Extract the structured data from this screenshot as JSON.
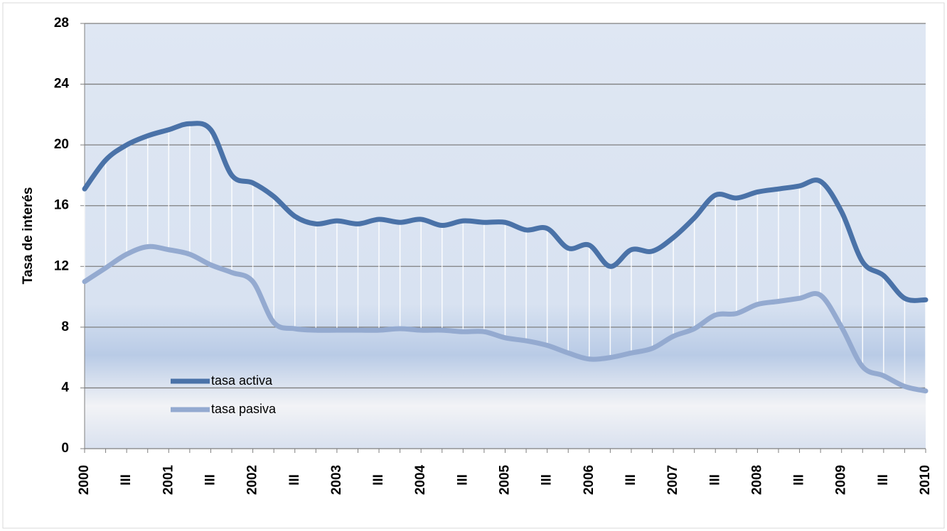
{
  "chart_data": {
    "type": "line",
    "y_label": "Tasa de interés",
    "categories": [
      "2000",
      null,
      "III",
      null,
      "2001",
      null,
      "III",
      null,
      "2002",
      null,
      "III",
      null,
      "2003",
      null,
      "III",
      null,
      "2004",
      null,
      "III",
      null,
      "2005",
      null,
      "III",
      null,
      "2006",
      null,
      "III",
      null,
      "2007",
      null,
      "III",
      null,
      "2008",
      null,
      "III",
      null,
      "2009",
      null,
      "III",
      null,
      "2010"
    ],
    "series": [
      {
        "name": "tasa activa",
        "color": "#4a72a8",
        "values": [
          17.1,
          19.0,
          20.0,
          20.6,
          21.0,
          21.4,
          21.0,
          18.0,
          17.5,
          16.6,
          15.3,
          14.8,
          15.0,
          14.8,
          15.1,
          14.9,
          15.1,
          14.7,
          15.0,
          14.9,
          14.9,
          14.4,
          14.5,
          13.2,
          13.4,
          12.0,
          13.1,
          13.0,
          13.9,
          15.2,
          16.7,
          16.5,
          16.9,
          17.1,
          17.3,
          17.6,
          15.6,
          12.3,
          11.4,
          9.9,
          9.8
        ]
      },
      {
        "name": "tasa pasiva",
        "color": "#94aad0",
        "values": [
          11.0,
          11.9,
          12.8,
          13.3,
          13.1,
          12.8,
          12.1,
          11.6,
          11.0,
          8.3,
          7.9,
          7.8,
          7.8,
          7.8,
          7.8,
          7.9,
          7.8,
          7.8,
          7.7,
          7.7,
          7.3,
          7.1,
          6.8,
          6.3,
          5.9,
          6.0,
          6.3,
          6.6,
          7.4,
          7.9,
          8.8,
          8.9,
          9.5,
          9.7,
          9.9,
          10.1,
          8.0,
          5.4,
          4.8,
          4.1,
          3.8
        ]
      }
    ],
    "ylim": [
      0,
      28
    ],
    "yticks": [
      0,
      4,
      8,
      12,
      16,
      20,
      24,
      28
    ],
    "grid": true,
    "high_low_lines": true,
    "legend": "lower left"
  }
}
